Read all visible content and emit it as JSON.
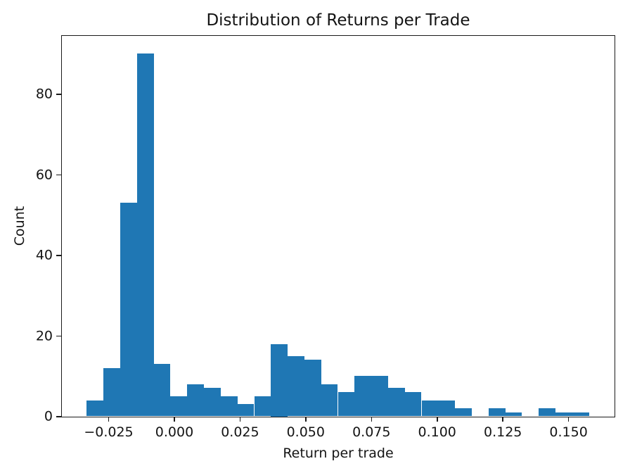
{
  "chart_data": {
    "type": "bar",
    "subtype": "histogram",
    "title": "Distribution of Returns per Trade",
    "xlabel": "Return per trade",
    "ylabel": "Count",
    "bar_color": "#1f77b4",
    "axis_color": "#1a1a1a",
    "text_color": "#141414",
    "background_color": "#ffffff",
    "grid": false,
    "legend_position": "none",
    "bin_start": -0.0332,
    "bin_width": 0.00637,
    "counts": [
      4,
      12,
      53,
      90,
      13,
      5,
      8,
      7,
      5,
      3,
      5,
      18,
      15,
      14,
      8,
      6,
      10,
      10,
      7,
      6,
      4,
      4,
      2,
      0,
      2,
      1,
      0,
      2,
      1,
      1
    ],
    "xlim": [
      -0.0428,
      0.1675
    ],
    "ylim": [
      0,
      94.5
    ],
    "x_ticks": [
      {
        "value": -0.025,
        "label": "−0.025"
      },
      {
        "value": 0.0,
        "label": "0.000"
      },
      {
        "value": 0.025,
        "label": "0.025"
      },
      {
        "value": 0.05,
        "label": "0.050"
      },
      {
        "value": 0.075,
        "label": "0.075"
      },
      {
        "value": 0.1,
        "label": "0.100"
      },
      {
        "value": 0.125,
        "label": "0.125"
      },
      {
        "value": 0.15,
        "label": "0.150"
      }
    ],
    "y_ticks": [
      {
        "value": 0,
        "label": "0"
      },
      {
        "value": 20,
        "label": "20"
      },
      {
        "value": 40,
        "label": "40"
      },
      {
        "value": 60,
        "label": "60"
      },
      {
        "value": 80,
        "label": "80"
      }
    ]
  }
}
